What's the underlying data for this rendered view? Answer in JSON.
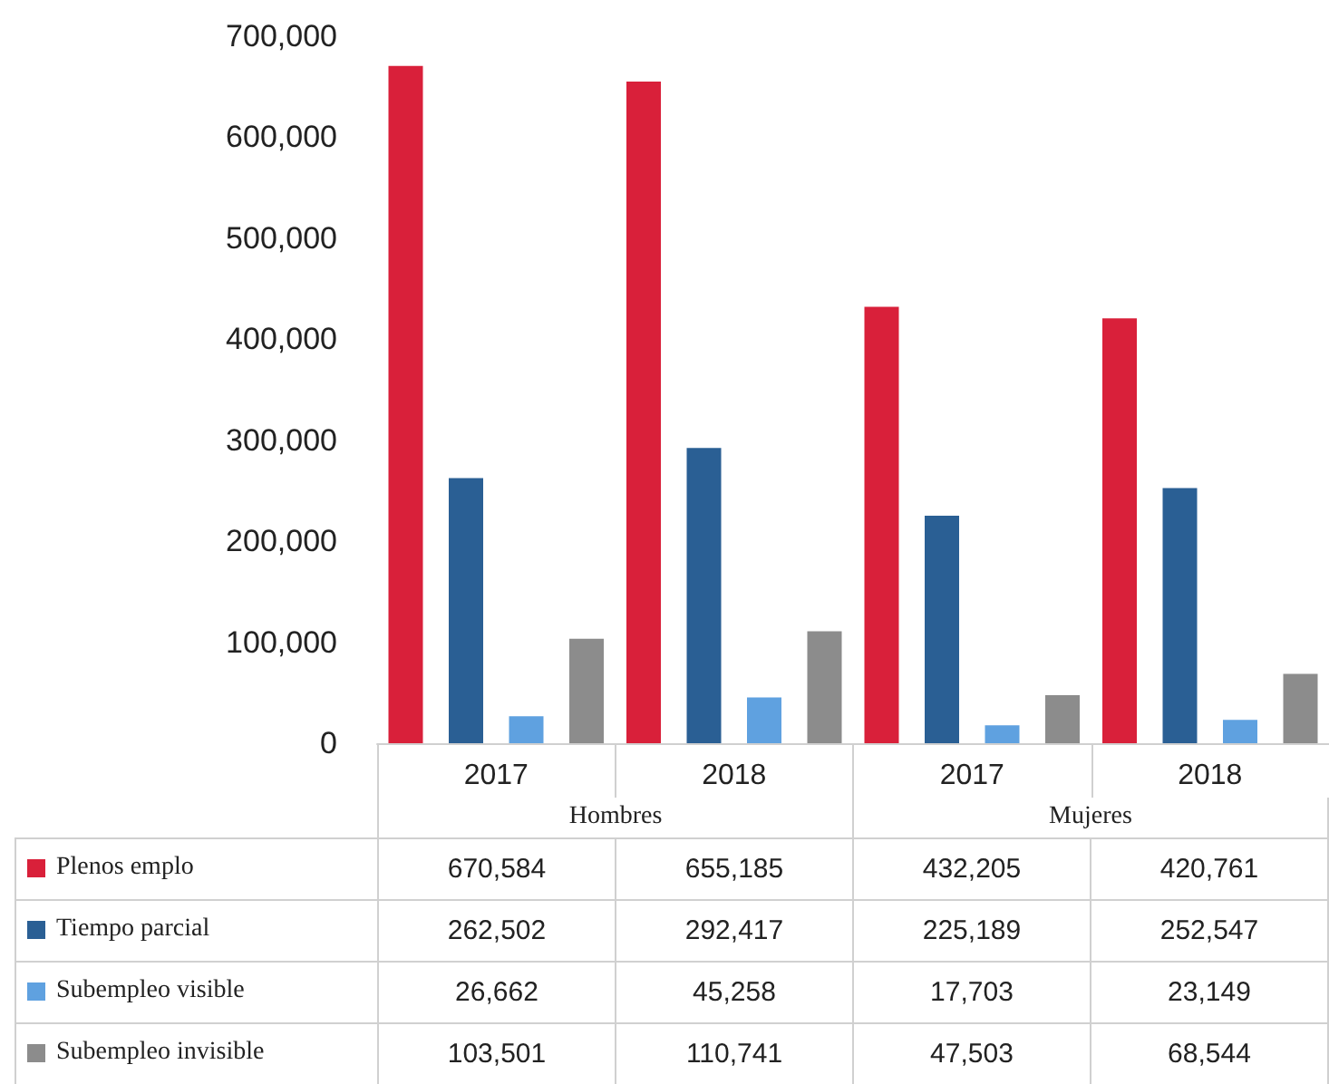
{
  "chart_data": {
    "type": "bar",
    "categories": [
      "2017",
      "2018",
      "2017",
      "2018"
    ],
    "series": [
      {
        "name": "Plenos emplo",
        "color": "#d9203a",
        "values": [
          670584,
          655185,
          432205,
          420761
        ],
        "value_labels": [
          "670,584",
          "655,185",
          "432,205",
          "420,761"
        ]
      },
      {
        "name": "Tiempo parcial",
        "color": "#2a5f94",
        "values": [
          262502,
          292417,
          225189,
          252547
        ],
        "value_labels": [
          "262,502",
          "292,417",
          "225,189",
          "252,547"
        ]
      },
      {
        "name": "Subempleo visible",
        "color": "#5fa1e0",
        "values": [
          26662,
          45258,
          17703,
          23149
        ],
        "value_labels": [
          "26,662",
          "45,258",
          "17,703",
          "23,149"
        ]
      },
      {
        "name": "Subempleo invisible",
        "color": "#8c8c8c",
        "values": [
          103501,
          110741,
          47503,
          68544
        ],
        "value_labels": [
          "103,501",
          "110,741",
          "47,503",
          "68,544"
        ]
      }
    ],
    "annotations": [
      "Hombres",
      "Mujeres"
    ],
    "ylim": [
      0,
      700000
    ],
    "yticks": [
      0,
      {
        "value": 100000,
        "label": "100,000"
      },
      {
        "value": 200000,
        "label": "200,000"
      },
      {
        "value": 300000,
        "label": "300,000"
      },
      {
        "value": 400000,
        "label": "400,000"
      },
      {
        "value": 500000,
        "label": "500,000"
      },
      {
        "value": 600000,
        "label": "600,000"
      },
      {
        "value": 700000,
        "label": "700,000"
      }
    ],
    "legend": "bottom"
  }
}
